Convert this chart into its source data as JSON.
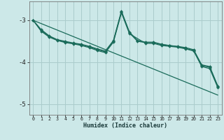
{
  "xlabel": "Humidex (Indice chaleur)",
  "background_color": "#cce8e8",
  "grid_color": "#aacccc",
  "line_color": "#1a6b5a",
  "xlim": [
    -0.5,
    23.5
  ],
  "ylim": [
    -5.25,
    -2.55
  ],
  "yticks": [
    -5,
    -4,
    -3
  ],
  "xticks": [
    0,
    1,
    2,
    3,
    4,
    5,
    6,
    7,
    8,
    9,
    10,
    11,
    12,
    13,
    14,
    15,
    16,
    17,
    18,
    19,
    20,
    21,
    22,
    23
  ],
  "series": [
    {
      "x": [
        0,
        1,
        2,
        3,
        4,
        5,
        6,
        7,
        8,
        9,
        10,
        11,
        12,
        13,
        14,
        15,
        16,
        17,
        18,
        19,
        20,
        21,
        22,
        23
      ],
      "y": [
        -3.0,
        -3.22,
        -3.37,
        -3.46,
        -3.5,
        -3.54,
        -3.57,
        -3.62,
        -3.68,
        -3.73,
        -3.48,
        -2.78,
        -3.28,
        -3.48,
        -3.52,
        -3.52,
        -3.57,
        -3.6,
        -3.62,
        -3.65,
        -3.7,
        -4.06,
        -4.1,
        -4.56
      ],
      "marker": "D",
      "markersize": 2.0,
      "linewidth": 0.9
    },
    {
      "x": [
        0,
        1,
        2,
        3,
        4,
        5,
        6,
        7,
        8,
        9,
        10,
        11,
        12,
        13,
        14,
        15,
        16,
        17,
        18,
        19,
        20,
        21,
        22,
        23
      ],
      "y": [
        -3.0,
        -3.24,
        -3.38,
        -3.47,
        -3.52,
        -3.55,
        -3.58,
        -3.63,
        -3.7,
        -3.75,
        -3.5,
        -2.8,
        -3.3,
        -3.5,
        -3.53,
        -3.53,
        -3.58,
        -3.6,
        -3.63,
        -3.67,
        -3.72,
        -4.08,
        -4.12,
        -4.58
      ],
      "marker": "D",
      "markersize": 2.0,
      "linewidth": 0.9
    },
    {
      "x": [
        0,
        1,
        2,
        3,
        4,
        5,
        6,
        7,
        8,
        9,
        10,
        11,
        12,
        14,
        15,
        16,
        17,
        18,
        19,
        20,
        21,
        22,
        23
      ],
      "y": [
        -3.0,
        -3.26,
        -3.4,
        -3.48,
        -3.53,
        -3.56,
        -3.6,
        -3.65,
        -3.72,
        -3.77,
        -3.52,
        -2.82,
        -3.32,
        -3.55,
        -3.55,
        -3.6,
        -3.62,
        -3.64,
        -3.68,
        -3.73,
        -4.1,
        -4.15,
        -4.6
      ],
      "marker": "D",
      "markersize": 2.0,
      "linewidth": 0.9
    },
    {
      "x": [
        0,
        23
      ],
      "y": [
        -3.0,
        -4.78
      ],
      "marker": null,
      "markersize": 0,
      "linewidth": 0.9
    }
  ]
}
